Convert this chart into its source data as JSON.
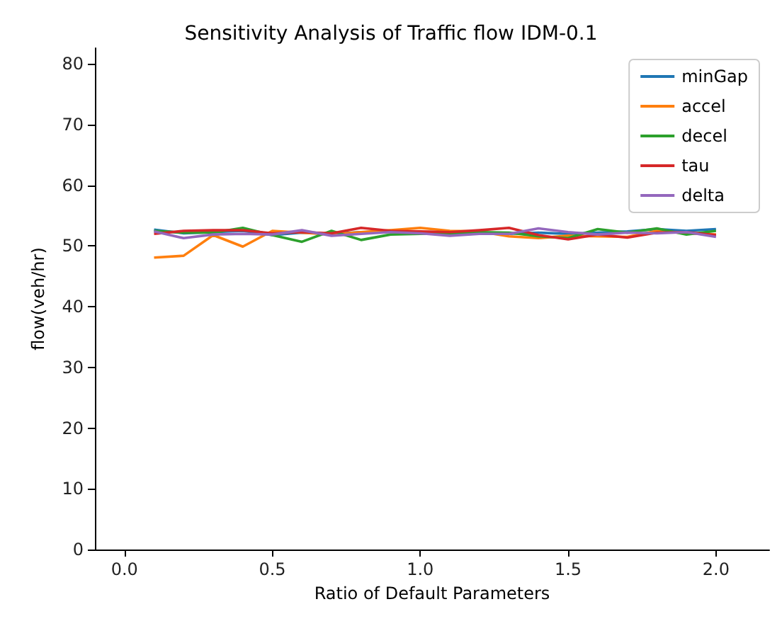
{
  "chart_data": {
    "type": "line",
    "title": "Sensitivity Analysis of Traffic flow IDM-0.1",
    "xlabel": "Ratio of Default Parameters",
    "ylabel": "flow(veh/hr)",
    "x": [
      0.1,
      0.2,
      0.3,
      0.4,
      0.5,
      0.6,
      0.7,
      0.8,
      0.9,
      1.0,
      1.1,
      1.2,
      1.3,
      1.4,
      1.5,
      1.6,
      1.7,
      1.8,
      1.9,
      2.0
    ],
    "xlim": [
      -0.1,
      2.18
    ],
    "xticks": [
      {
        "value": 0,
        "label": "0.0"
      },
      0.5,
      {
        "value": 1,
        "label": "1.0"
      },
      1.5,
      {
        "value": 2,
        "label": "2.0"
      }
    ],
    "ylim": [
      0,
      82.6
    ],
    "yticks": [
      0,
      10,
      20,
      30,
      40,
      50,
      60,
      70,
      80
    ],
    "grid": false,
    "legend": "top right",
    "series": [
      {
        "name": "minGap",
        "color": "#1f77b4",
        "values": [
          52.7,
          52.1,
          52.3,
          52.5,
          51.8,
          52.2,
          52.0,
          52.3,
          52.4,
          52.2,
          52.1,
          52.2,
          52.0,
          52.2,
          52.0,
          52.2,
          52.4,
          52.8,
          52.5,
          52.8
        ]
      },
      {
        "name": "accel",
        "color": "#ff7f0e",
        "values": [
          48.1,
          48.4,
          51.8,
          49.9,
          52.5,
          52.2,
          51.9,
          52.3,
          52.6,
          53.0,
          52.5,
          52.4,
          51.6,
          51.3,
          51.7,
          51.6,
          51.5,
          52.5,
          52.1,
          51.9
        ]
      },
      {
        "name": "decel",
        "color": "#2ca02c",
        "values": [
          52.5,
          52.2,
          52.2,
          53.0,
          51.8,
          50.7,
          52.5,
          51.0,
          51.9,
          52.0,
          52.1,
          52.3,
          52.2,
          51.6,
          51.3,
          52.8,
          52.2,
          52.9,
          51.9,
          52.5
        ]
      },
      {
        "name": "tau",
        "color": "#d62728",
        "values": [
          52.0,
          52.5,
          52.6,
          52.6,
          52.1,
          52.3,
          52.1,
          53.0,
          52.5,
          52.4,
          52.3,
          52.6,
          53.0,
          51.8,
          51.1,
          51.9,
          51.4,
          52.2,
          52.3,
          51.8
        ]
      },
      {
        "name": "delta",
        "color": "#9467bd",
        "values": [
          52.4,
          51.3,
          51.9,
          52.0,
          51.9,
          52.6,
          51.7,
          52.0,
          52.3,
          52.1,
          51.7,
          52.0,
          52.0,
          52.9,
          52.3,
          51.9,
          52.2,
          52.1,
          52.3,
          51.5
        ]
      }
    ]
  }
}
